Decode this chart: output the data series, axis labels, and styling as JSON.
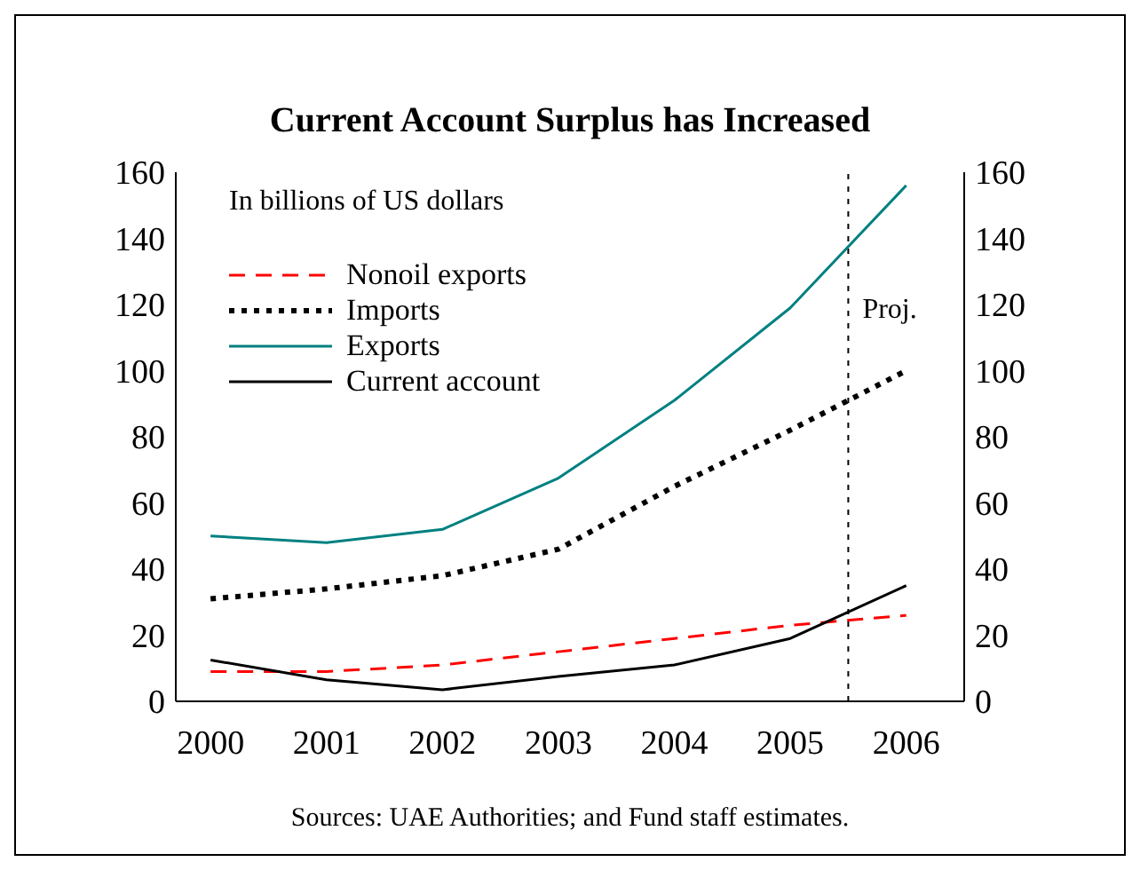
{
  "chart_data": {
    "type": "line",
    "title": "Current Account Surplus has Increased",
    "x": [
      2000,
      2001,
      2002,
      2003,
      2004,
      2005,
      2006
    ],
    "xlim": [
      1999.7,
      2006.5
    ],
    "xticks": [
      2000,
      2001,
      2002,
      2003,
      2004,
      2005,
      2006
    ],
    "ylim": [
      0,
      160
    ],
    "yticks": [
      0,
      20,
      40,
      60,
      80,
      100,
      120,
      140,
      160
    ],
    "y2lim": [
      0,
      160
    ],
    "y2ticks": [
      0,
      20,
      40,
      60,
      80,
      100,
      120,
      140,
      160
    ],
    "series": [
      {
        "name": "Nonoil exports",
        "color": "#ff0000",
        "line_style": "dashed",
        "values": [
          9,
          9,
          11,
          15,
          19,
          23,
          26
        ]
      },
      {
        "name": "Imports",
        "color": "#000000",
        "line_style": "dotted",
        "values": [
          31,
          34,
          38,
          46,
          65,
          82,
          100
        ]
      },
      {
        "name": "Exports",
        "color": "#008080",
        "line_style": "solid",
        "values": [
          50,
          48,
          52,
          67.5,
          91,
          119,
          156
        ]
      },
      {
        "name": "Current account",
        "color": "#000000",
        "line_style": "solid",
        "values": [
          12.5,
          6.5,
          3.5,
          7.5,
          11,
          19,
          35
        ]
      }
    ],
    "ref_lines": [
      {
        "axis": "x",
        "value": 2005.5,
        "label": "Proj.",
        "color": "#000000",
        "line_style": "dotted"
      }
    ],
    "annotations": [
      "In billions of US dollars",
      "Sources: UAE Authorities; and Fund staff estimates."
    ],
    "legend": "top left",
    "grid": false,
    "marker": "none"
  }
}
